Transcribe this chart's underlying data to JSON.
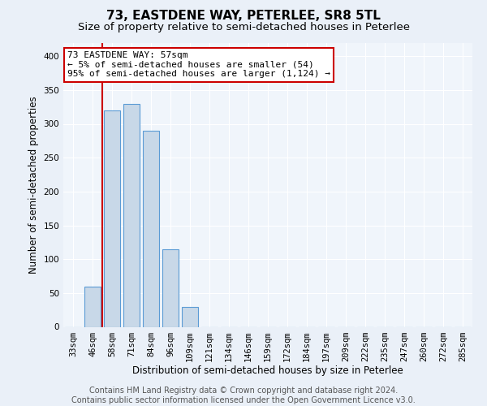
{
  "title": "73, EASTDENE WAY, PETERLEE, SR8 5TL",
  "subtitle": "Size of property relative to semi-detached houses in Peterlee",
  "xlabel": "Distribution of semi-detached houses by size in Peterlee",
  "ylabel": "Number of semi-detached properties",
  "categories": [
    "33sqm",
    "46sqm",
    "58sqm",
    "71sqm",
    "84sqm",
    "96sqm",
    "109sqm",
    "121sqm",
    "134sqm",
    "146sqm",
    "159sqm",
    "172sqm",
    "184sqm",
    "197sqm",
    "209sqm",
    "222sqm",
    "235sqm",
    "247sqm",
    "260sqm",
    "272sqm",
    "285sqm"
  ],
  "values": [
    0,
    60,
    320,
    330,
    290,
    115,
    30,
    0,
    0,
    0,
    0,
    0,
    0,
    0,
    0,
    0,
    0,
    0,
    0,
    0,
    0
  ],
  "bar_color": "#c8d8e8",
  "bar_edge_color": "#5b9bd5",
  "annotation_line1": "73 EASTDENE WAY: 57sqm",
  "annotation_line2": "← 5% of semi-detached houses are smaller (54)",
  "annotation_line3": "95% of semi-detached houses are larger (1,124) →",
  "annotation_box_color": "#ffffff",
  "annotation_box_edge": "#cc0000",
  "vline_color": "#cc0000",
  "vline_x_index": 1.5,
  "ylim": [
    0,
    420
  ],
  "yticks": [
    0,
    50,
    100,
    150,
    200,
    250,
    300,
    350,
    400
  ],
  "footer": "Contains HM Land Registry data © Crown copyright and database right 2024.\nContains public sector information licensed under the Open Government Licence v3.0.",
  "bg_color": "#eaf0f8",
  "plot_bg_color": "#f0f5fb",
  "grid_color": "#ffffff",
  "title_fontsize": 11,
  "subtitle_fontsize": 9.5,
  "axis_label_fontsize": 8.5,
  "tick_fontsize": 7.5,
  "annot_fontsize": 8,
  "footer_fontsize": 7
}
